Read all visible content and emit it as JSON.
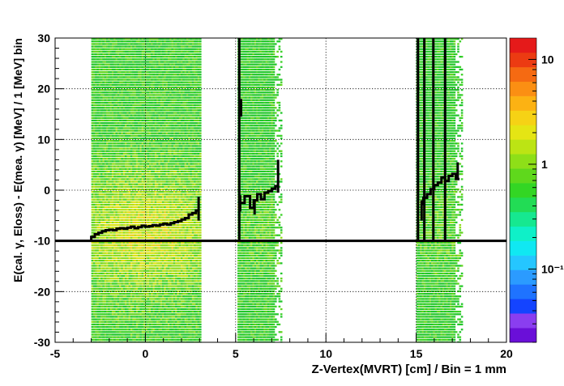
{
  "chart_data": {
    "type": "heatmap",
    "xlabel": "Z-Vertex(MVRT) [cm] / Bin = 1 mm",
    "ylabel": "E(cal. γ, Eloss) - E(mea. γ) [MeV] / 1 [MeV] bin",
    "xlim": [
      -5,
      20
    ],
    "ylim": [
      -30,
      30
    ],
    "x_ticks": [
      -5,
      0,
      5,
      10,
      15,
      20
    ],
    "y_ticks": [
      -30,
      -20,
      -10,
      0,
      10,
      20,
      30
    ],
    "x_tick_labels": [
      "-5",
      "0",
      "5",
      "10",
      "15",
      "20"
    ],
    "y_tick_labels": [
      "-30",
      "-20",
      "-10",
      "0",
      "10",
      "20",
      "30"
    ],
    "grid": true,
    "colorbar": {
      "scale": "log",
      "tick_labels": [
        {
          "value": 10,
          "label": "10"
        },
        {
          "value": 1,
          "label": "1"
        },
        {
          "value": 0.1,
          "label": "10⁻¹"
        }
      ],
      "colors": [
        "#6a0fd8",
        "#8a3ef0",
        "#1444ff",
        "#1f73ff",
        "#2b9bff",
        "#25c6ff",
        "#10e8f2",
        "#0ff0c8",
        "#16e890",
        "#22dc55",
        "#33d624",
        "#5fd81c",
        "#8edf18",
        "#bce414",
        "#e5e514",
        "#f6d215",
        "#fcb213",
        "#fb8f13",
        "#f56a12",
        "#ec3b12",
        "#e51a1a"
      ]
    },
    "horizontal_line": {
      "y": -10
    },
    "regions": [
      {
        "x": [
          -3.0,
          3.0
        ],
        "intensity": "high"
      },
      {
        "x": [
          5.1,
          7.5
        ],
        "intensity": "medium"
      },
      {
        "x": [
          15.0,
          17.5
        ],
        "intensity": "medium"
      }
    ],
    "profile_segments": [
      {
        "x": [
          -3.0,
          -2.8,
          -2.6,
          -2.4,
          -2.2,
          -2.0,
          -1.8,
          -1.6,
          -1.4,
          -1.2,
          -1.0,
          -0.8,
          -0.6,
          -0.4,
          -0.2,
          0.0,
          0.2,
          0.4,
          0.6,
          0.8,
          1.0,
          1.2,
          1.4,
          1.6,
          1.8,
          2.0,
          2.2,
          2.4,
          2.6,
          2.8,
          3.0
        ],
        "y": [
          -10.0,
          -9.2,
          -8.7,
          -8.4,
          -8.1,
          -7.9,
          -7.8,
          -7.9,
          -7.6,
          -7.5,
          -7.6,
          -7.4,
          -7.2,
          -7.5,
          -7.3,
          -7.0,
          -7.2,
          -7.1,
          -6.9,
          -7.0,
          -6.8,
          -6.6,
          -6.8,
          -6.5,
          -6.3,
          -6.1,
          -5.8,
          -5.5,
          -4.8,
          -4.5,
          -4.0
        ]
      },
      {
        "x": [
          5.2,
          5.5,
          5.8,
          6.0,
          6.2,
          6.4,
          6.6,
          6.8,
          7.0,
          7.2,
          7.4
        ],
        "y": [
          -3.8,
          -2.5,
          -1.2,
          -3.5,
          -2.0,
          -0.8,
          -1.8,
          -0.5,
          -0.2,
          0.3,
          0.8
        ]
      },
      {
        "x": [
          15.4,
          15.6,
          15.8,
          16.0,
          16.2,
          16.4,
          16.6,
          16.8,
          17.0,
          17.2,
          17.4
        ],
        "y": [
          -3.0,
          -1.5,
          -0.8,
          0.2,
          1.0,
          1.5,
          2.5,
          1.8,
          2.8,
          3.2,
          2.2
        ]
      }
    ],
    "profile_spikes": [
      {
        "x": 2.95,
        "y": [
          -6.0,
          -1.3
        ]
      },
      {
        "x": 5.3,
        "y": [
          14.5,
          18.0
        ]
      },
      {
        "x": 5.25,
        "y": [
          -4.2,
          -1.0
        ]
      },
      {
        "x": 6.05,
        "y": [
          -4.8,
          -2.2
        ]
      },
      {
        "x": 7.35,
        "y": [
          -0.5,
          6.0
        ]
      },
      {
        "x": 15.3,
        "y": [
          -6.0,
          -2.0
        ]
      },
      {
        "x": 16.6,
        "y": [
          24.5,
          26.5
        ]
      },
      {
        "x": 17.3,
        "y": [
          2.0,
          5.5
        ]
      }
    ],
    "vertical_bars": [
      {
        "x": 5.2,
        "y": [
          -10.0,
          30.0
        ]
      },
      {
        "x": 15.1,
        "y": [
          -10.0,
          30.0
        ]
      },
      {
        "x": 15.45,
        "y": [
          -10.0,
          30.0
        ]
      },
      {
        "x": 15.95,
        "y": [
          -10.0,
          30.0
        ]
      },
      {
        "x": 16.6,
        "y": [
          -10.0,
          30.0
        ]
      }
    ]
  }
}
